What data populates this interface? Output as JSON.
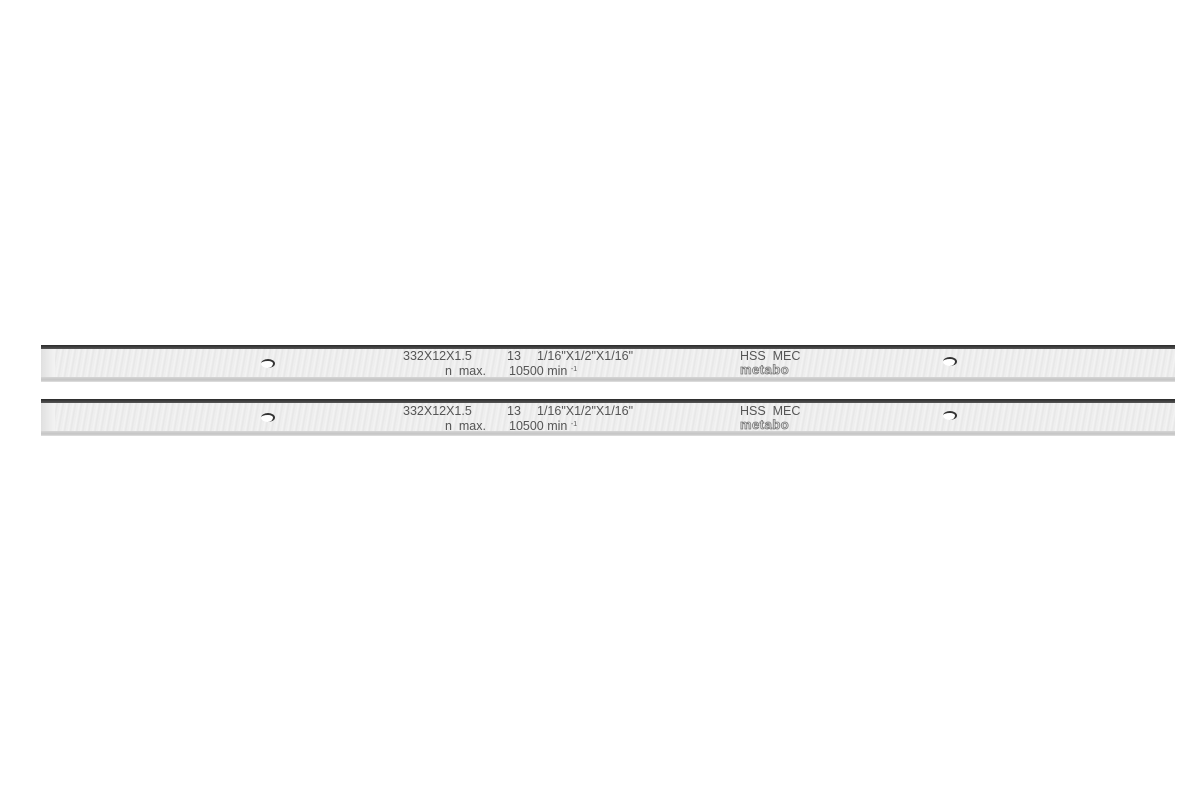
{
  "blades": [
    {
      "size": "332X12X1.5",
      "qty": "13",
      "imperial": "1/16\"X1/2\"X1/16\"",
      "speed_label": "n  max.",
      "speed_value": "10500 min",
      "speed_unit_exp": "-1",
      "material": "HSS  MEC",
      "brand": "metabo"
    },
    {
      "size": "332X12X1.5",
      "qty": "13",
      "imperial": "1/16\"X1/2\"X1/16\"",
      "speed_label": "n  max.",
      "speed_value": "10500 min",
      "speed_unit_exp": "-1",
      "material": "HSS  MEC",
      "brand": "metabo"
    }
  ],
  "colors": {
    "background": "#ffffff",
    "steel": "#ececec",
    "edge": "#2a2a2a",
    "print": "#555555"
  }
}
